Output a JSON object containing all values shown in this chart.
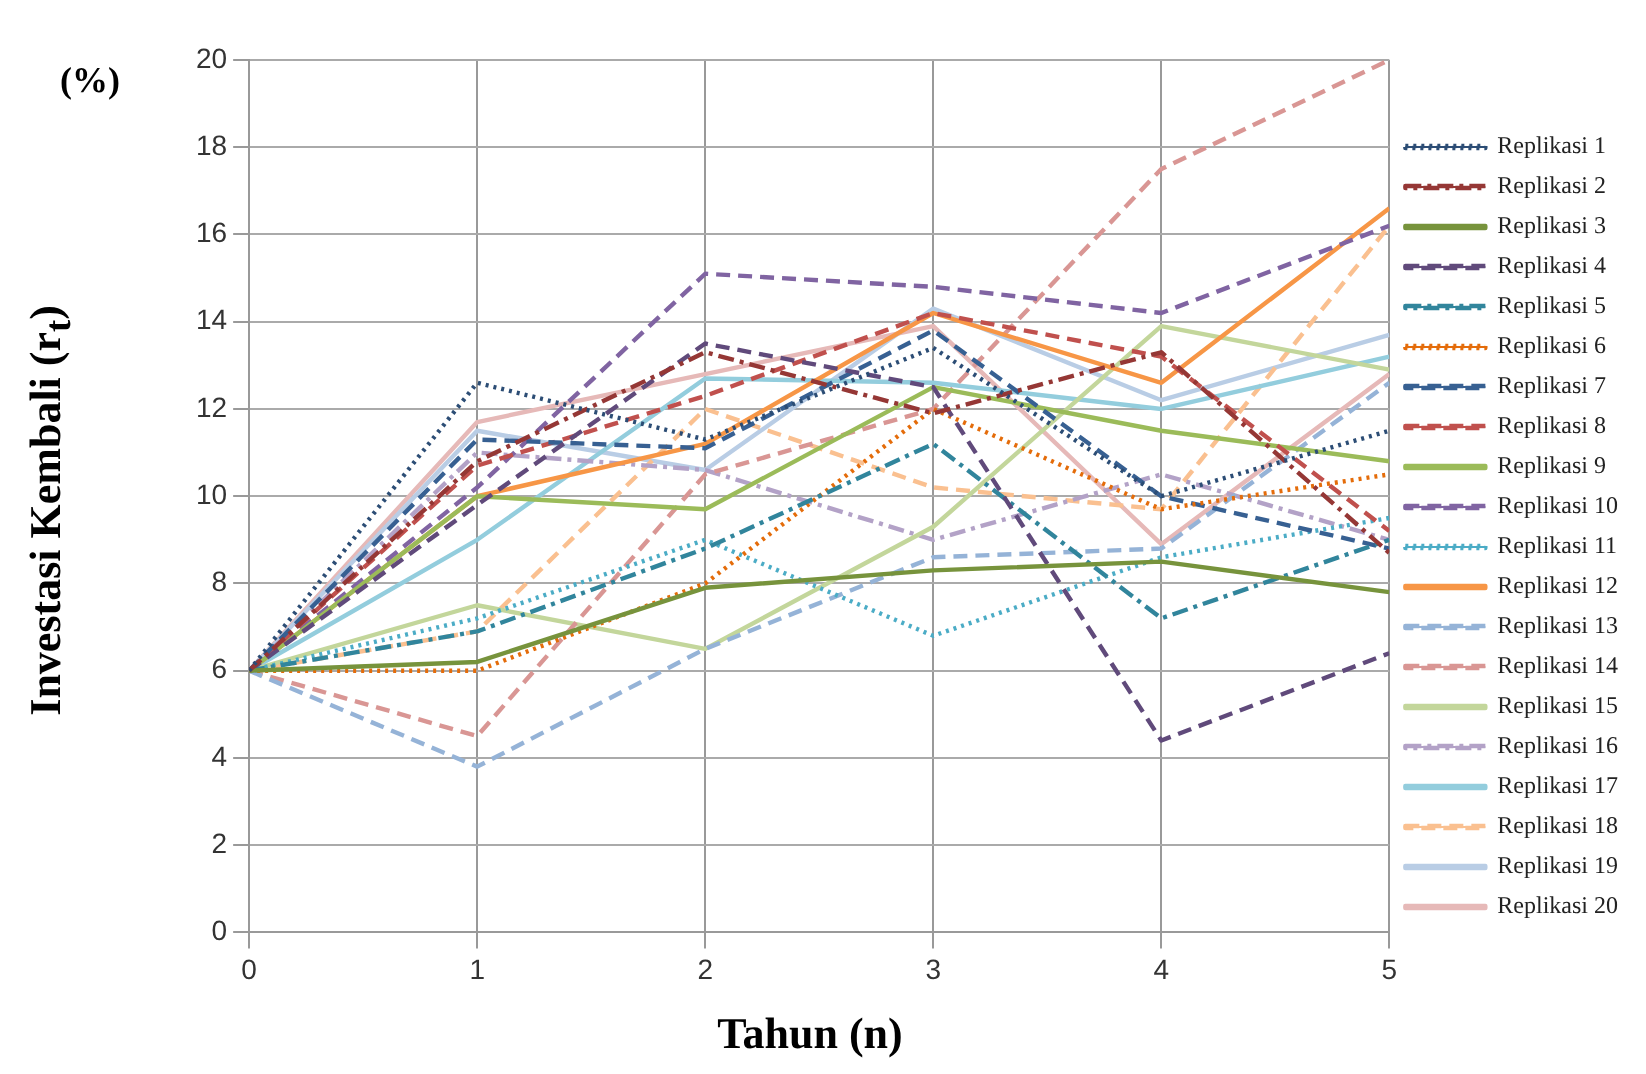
{
  "chart_data": {
    "type": "line",
    "ylabel": "Investasi Kembali (r$_{t}$)",
    "xlabel": "Tahun (n)",
    "annotations": [
      "(%)"
    ],
    "x": [
      0,
      1,
      2,
      3,
      4,
      5
    ],
    "xlim": [
      0,
      5
    ],
    "xticks": [
      0,
      1,
      2,
      3,
      4,
      5
    ],
    "ylim": [
      0,
      20
    ],
    "yticks": [
      0,
      2,
      4,
      6,
      8,
      10,
      12,
      14,
      16,
      18,
      20
    ],
    "grid": true,
    "legend": "right",
    "marker": "none",
    "series": [
      {
        "name": "Replikasi 1",
        "color": "#2c4d75",
        "line_style": "dotted",
        "values": [
          6,
          12.6,
          11.3,
          13.4,
          10.0,
          11.5
        ]
      },
      {
        "name": "Replikasi 2",
        "color": "#953735",
        "line_style": "dashdot",
        "values": [
          6,
          10.8,
          13.3,
          11.9,
          13.3,
          8.7
        ]
      },
      {
        "name": "Replikasi 3",
        "color": "#77933c",
        "line_style": "solid",
        "values": [
          6,
          6.2,
          7.9,
          8.3,
          8.5,
          7.8
        ]
      },
      {
        "name": "Replikasi 4",
        "color": "#604a7b",
        "line_style": "dashed",
        "values": [
          6,
          9.8,
          13.5,
          12.5,
          4.4,
          6.4
        ]
      },
      {
        "name": "Replikasi 5",
        "color": "#31859c",
        "line_style": "dashdot",
        "values": [
          6,
          6.9,
          8.8,
          11.2,
          7.2,
          9.0
        ]
      },
      {
        "name": "Replikasi 6",
        "color": "#e46c0a",
        "line_style": "dotted",
        "values": [
          6,
          6.0,
          8.0,
          12.0,
          9.7,
          10.5
        ]
      },
      {
        "name": "Replikasi 7",
        "color": "#376092",
        "line_style": "dashed",
        "values": [
          6,
          11.3,
          11.1,
          13.8,
          10.0,
          8.8
        ]
      },
      {
        "name": "Replikasi 8",
        "color": "#c0504d",
        "line_style": "dashed",
        "values": [
          6,
          10.7,
          12.3,
          14.2,
          13.2,
          9.2
        ]
      },
      {
        "name": "Replikasi 9",
        "color": "#9bbb59",
        "line_style": "solid",
        "values": [
          6,
          10.0,
          9.7,
          12.5,
          11.5,
          10.8
        ]
      },
      {
        "name": "Replikasi 10",
        "color": "#8064a2",
        "line_style": "dashed",
        "values": [
          6,
          10.2,
          15.1,
          14.8,
          14.2,
          16.2
        ]
      },
      {
        "name": "Replikasi 11",
        "color": "#4bacc6",
        "line_style": "dotted",
        "values": [
          6,
          7.2,
          9.0,
          6.8,
          8.6,
          9.5
        ]
      },
      {
        "name": "Replikasi 12",
        "color": "#f79646",
        "line_style": "solid",
        "values": [
          6,
          10.0,
          11.2,
          14.2,
          12.6,
          16.6
        ]
      },
      {
        "name": "Replikasi 13",
        "color": "#95b3d7",
        "line_style": "dashed",
        "values": [
          6,
          3.8,
          6.5,
          8.6,
          8.8,
          12.6
        ]
      },
      {
        "name": "Replikasi 14",
        "color": "#d99694",
        "line_style": "dashed",
        "values": [
          6,
          4.5,
          10.5,
          12.0,
          17.5,
          20
        ]
      },
      {
        "name": "Replikasi 15",
        "color": "#c3d69b",
        "line_style": "solid",
        "values": [
          6,
          7.5,
          6.5,
          9.3,
          13.9,
          12.9
        ]
      },
      {
        "name": "Replikasi 16",
        "color": "#b3a2c7",
        "line_style": "dashdot",
        "values": [
          6,
          11.0,
          10.6,
          9.0,
          10.5,
          9.0
        ]
      },
      {
        "name": "Replikasi 17",
        "color": "#93cddd",
        "line_style": "solid",
        "values": [
          6,
          9.0,
          12.7,
          12.6,
          12.0,
          13.2
        ]
      },
      {
        "name": "Replikasi 18",
        "color": "#fac090",
        "line_style": "dashed",
        "values": [
          6,
          6.9,
          12.0,
          10.2,
          9.7,
          16.2
        ]
      },
      {
        "name": "Replikasi 19",
        "color": "#b9cde5",
        "line_style": "solid",
        "values": [
          6,
          11.5,
          10.6,
          14.3,
          12.2,
          13.7
        ]
      },
      {
        "name": "Replikasi 20",
        "color": "#e6b9b8",
        "line_style": "solid",
        "values": [
          6,
          11.7,
          12.8,
          13.9,
          8.9,
          12.8
        ]
      }
    ]
  }
}
